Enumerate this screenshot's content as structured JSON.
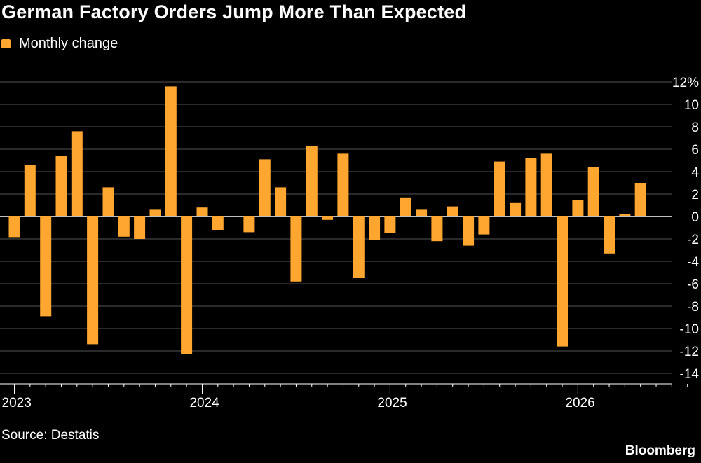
{
  "title": "German Factory Orders Jump More Than Expected",
  "source": "Source: Destatis",
  "brand": "Bloomberg",
  "colors": {
    "bar": "#FFA631",
    "grid": "#555555",
    "zero": "#ffffff",
    "background": "#000000"
  },
  "chart_data": {
    "type": "bar",
    "legend": [
      "Monthly change"
    ],
    "series": [
      {
        "name": "Monthly change",
        "x": [
          "2023-01",
          "2023-02",
          "2023-03",
          "2023-04",
          "2023-05",
          "2023-06",
          "2023-07",
          "2023-08",
          "2023-09",
          "2023-10",
          "2023-11",
          "2023-12",
          "2024-01",
          "2024-02",
          "2024-03",
          "2024-04",
          "2024-05",
          "2024-06",
          "2024-07",
          "2024-08",
          "2024-09",
          "2024-10",
          "2024-11",
          "2024-12",
          "2025-01",
          "2025-02",
          "2025-03",
          "2025-04",
          "2025-05",
          "2025-06",
          "2025-07",
          "2025-08",
          "2025-09",
          "2025-10",
          "2025-11",
          "2025-12",
          "2026-01",
          "2026-02",
          "2026-03",
          "2026-04",
          "2026-05",
          "2026-06"
        ],
        "values": [
          -1.9,
          4.6,
          -8.9,
          5.4,
          7.6,
          -11.4,
          2.6,
          -1.8,
          -2.0,
          0.6,
          11.6,
          -12.3,
          0.8,
          -1.2,
          0.0,
          -1.4,
          5.1,
          2.6,
          -5.8,
          6.3,
          -0.3,
          5.6,
          -5.5,
          -2.1,
          -1.5,
          1.7,
          0.6,
          -2.2,
          0.9,
          -2.6,
          -1.6,
          4.9,
          1.2,
          5.2,
          5.6,
          -11.6,
          1.5,
          4.4,
          -3.3,
          0.2,
          3.0,
          0.0
        ]
      }
    ],
    "xticks": [
      "2023",
      "2024",
      "2025",
      "2026"
    ],
    "yticks": [
      "12%",
      "10",
      "8",
      "6",
      "4",
      "2",
      "0",
      "-2",
      "-4",
      "-6",
      "-8",
      "-10",
      "-12",
      "-14"
    ],
    "ylim": [
      -14,
      12
    ],
    "ytick_values": [
      12,
      10,
      8,
      6,
      4,
      2,
      0,
      -2,
      -4,
      -6,
      -8,
      -10,
      -12,
      -14
    ],
    "grid": true,
    "y_axis_side": "right"
  }
}
